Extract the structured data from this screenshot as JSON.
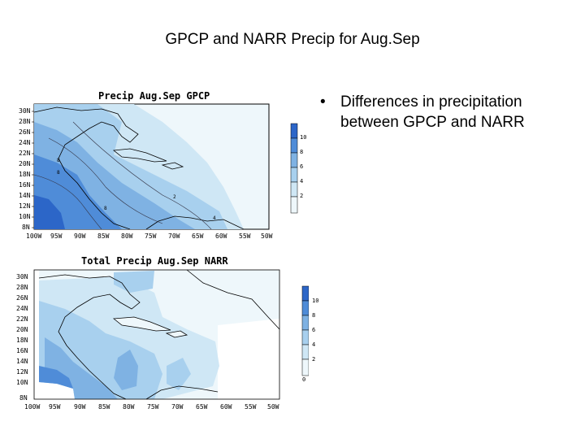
{
  "slide": {
    "title": "GPCP and NARR Precip for Aug.Sep",
    "bullets": [
      "Differences in precipitation between GPCP and NARR"
    ]
  },
  "maps": {
    "gpcp": {
      "title": "Precip Aug.Sep GPCP",
      "lat_labels": [
        "30N",
        "28N",
        "26N",
        "24N",
        "22N",
        "20N",
        "18N",
        "16N",
        "14N",
        "12N",
        "10N",
        "8N"
      ],
      "lon_labels": [
        "100W",
        "95W",
        "90W",
        "85W",
        "80W",
        "75W",
        "70W",
        "65W",
        "60W",
        "55W",
        "50W"
      ],
      "colorbar_labels": [
        "10",
        "8",
        "6",
        "4",
        "2"
      ],
      "contour_labels": [
        "8",
        "8",
        "2",
        "8",
        "4"
      ]
    },
    "narr": {
      "title": "Total Precip Aug.Sep NARR",
      "lat_labels": [
        "30N",
        "28N",
        "26N",
        "24N",
        "22N",
        "20N",
        "18N",
        "16N",
        "14N",
        "12N",
        "10N",
        "8N"
      ],
      "lon_labels": [
        "100W",
        "95W",
        "90W",
        "85W",
        "80W",
        "75W",
        "70W",
        "65W",
        "60W",
        "55W",
        "50W"
      ],
      "colorbar_labels": [
        "10",
        "8",
        "6",
        "4",
        "2",
        "0"
      ]
    }
  },
  "colors": {
    "band_1": "#eef7fb",
    "band_2": "#cfe7f5",
    "band_3": "#a8d0ee",
    "band_4": "#7fb2e3",
    "band_5": "#4f8cd8",
    "band_6": "#2c66c8"
  }
}
